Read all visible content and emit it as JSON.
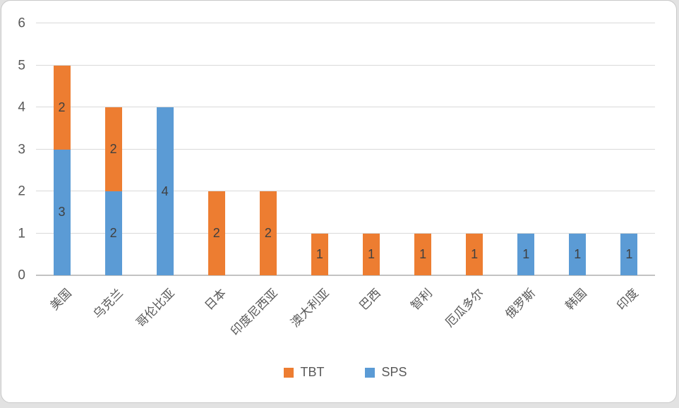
{
  "chart_data": {
    "type": "bar",
    "variant": "stacked",
    "title": "",
    "xlabel": "",
    "ylabel": "",
    "categories": [
      "美国",
      "乌克兰",
      "哥伦比亚",
      "日本",
      "印度尼西亚",
      "澳大利亚",
      "巴西",
      "智利",
      "厄瓜多尔",
      "俄罗斯",
      "韩国",
      "印度"
    ],
    "series": [
      {
        "name": "TBT",
        "color": "#ED7D31",
        "values": [
          2,
          2,
          0,
          2,
          2,
          1,
          1,
          1,
          1,
          0,
          0,
          0
        ]
      },
      {
        "name": "SPS",
        "color": "#5B9BD5",
        "values": [
          3,
          2,
          4,
          0,
          0,
          0,
          0,
          0,
          0,
          1,
          1,
          1
        ]
      }
    ],
    "totals": [
      5,
      4,
      4,
      2,
      2,
      1,
      1,
      1,
      1,
      1,
      1,
      1
    ],
    "ylim": [
      0,
      6
    ],
    "yticks": [
      0,
      1,
      2,
      3,
      4,
      5,
      6
    ],
    "grid": true,
    "data_labels": true,
    "legend_position": "bottom",
    "legend": [
      "TBT",
      "SPS"
    ]
  },
  "style": {
    "gridline_color": "#D9D9D9",
    "axis_line_color": "#C3C3C3",
    "tick_label_color": "#595959",
    "data_label_color": "#3F3F3F",
    "frame_border_color": "#C9C9C9",
    "background_color": "#FFFFFF"
  }
}
